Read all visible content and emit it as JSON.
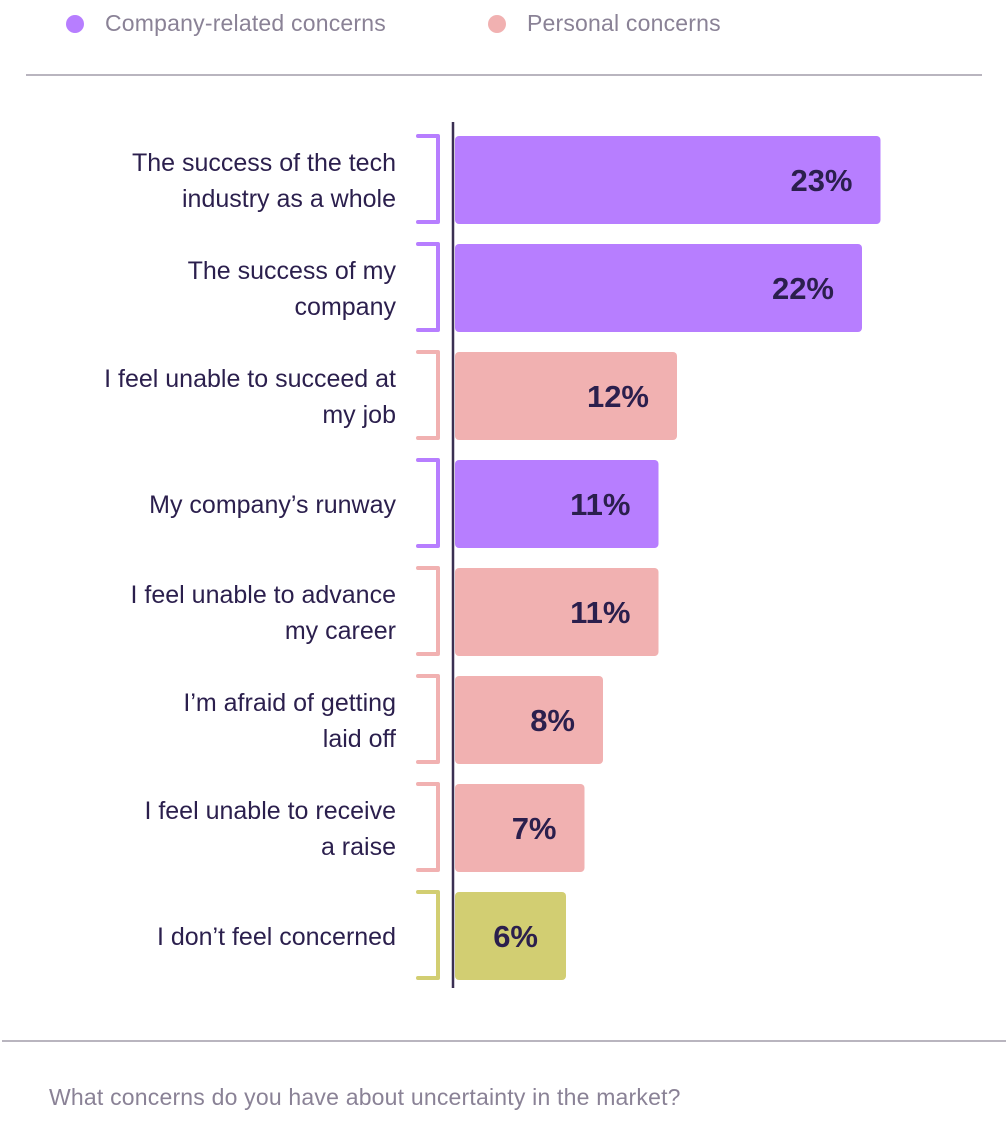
{
  "legend": {
    "company_label": "Company-related concerns",
    "personal_label": "Personal concerns"
  },
  "caption": "What concerns do you have about uncertainty in the market?",
  "colors": {
    "company": "#b77eff",
    "personal": "#f1b1b1",
    "neutral": "#d2ce72",
    "text": "#2b1f4d",
    "axis": "#3a2f52"
  },
  "chart_data": {
    "type": "bar",
    "orientation": "horizontal",
    "categories": [
      [
        "The success of the tech",
        "industry as a whole"
      ],
      [
        "The success of my",
        "company"
      ],
      [
        "I feel unable to succeed at",
        "my job"
      ],
      [
        "My company’s runway"
      ],
      [
        "I feel unable to advance",
        "my career"
      ],
      [
        "I’m afraid of getting",
        "laid off"
      ],
      [
        "I feel unable to receive",
        "a raise"
      ],
      [
        "I don’t feel concerned"
      ]
    ],
    "values": [
      23,
      22,
      12,
      11,
      11,
      8,
      7,
      6
    ],
    "value_labels": [
      "23%",
      "22%",
      "12%",
      "11%",
      "11%",
      "8%",
      "7%",
      "6%"
    ],
    "groups": [
      "company",
      "company",
      "personal",
      "company",
      "personal",
      "personal",
      "personal",
      "neutral"
    ],
    "unit": "%"
  }
}
